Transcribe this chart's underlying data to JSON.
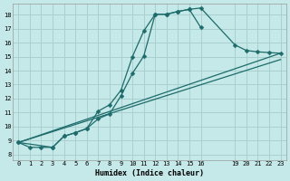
{
  "bg_color": "#c5e8e8",
  "grid_color": "#aacfcf",
  "line_color": "#1e6b6b",
  "markersize": 2.5,
  "linewidth": 0.9,
  "xlabel": "Humidex (Indice chaleur)",
  "ylabel_ticks": [
    8,
    9,
    10,
    11,
    12,
    13,
    14,
    15,
    16,
    17,
    18
  ],
  "xlim": [
    -0.5,
    23.5
  ],
  "ylim": [
    7.6,
    18.8
  ],
  "xticks": [
    0,
    1,
    2,
    3,
    4,
    5,
    6,
    7,
    8,
    9,
    10,
    11,
    12,
    13,
    14,
    15,
    16,
    19,
    20,
    21,
    22,
    23
  ],
  "line1_x": [
    0,
    1,
    2,
    3,
    4,
    5,
    6,
    7,
    8,
    9,
    10,
    11,
    12,
    13,
    14,
    15,
    16
  ],
  "line1_y": [
    8.85,
    8.5,
    8.5,
    8.5,
    9.3,
    9.55,
    9.85,
    11.1,
    11.55,
    12.6,
    15.0,
    16.85,
    18.05,
    18.05,
    18.25,
    18.4,
    17.1
  ],
  "line2_x": [
    0,
    3,
    4,
    5,
    6,
    7,
    8,
    9,
    10,
    11,
    12,
    13,
    14,
    15,
    16,
    19,
    20,
    21,
    22,
    23
  ],
  "line2_y": [
    8.85,
    8.5,
    9.3,
    9.55,
    9.85,
    10.55,
    10.9,
    12.2,
    13.8,
    15.05,
    18.05,
    18.05,
    18.25,
    18.4,
    18.5,
    15.85,
    15.45,
    15.35,
    15.3,
    15.25
  ],
  "line3_x": [
    0,
    23
  ],
  "line3_y": [
    8.85,
    15.25
  ],
  "line4_x": [
    0,
    23
  ],
  "line4_y": [
    8.85,
    14.8
  ]
}
